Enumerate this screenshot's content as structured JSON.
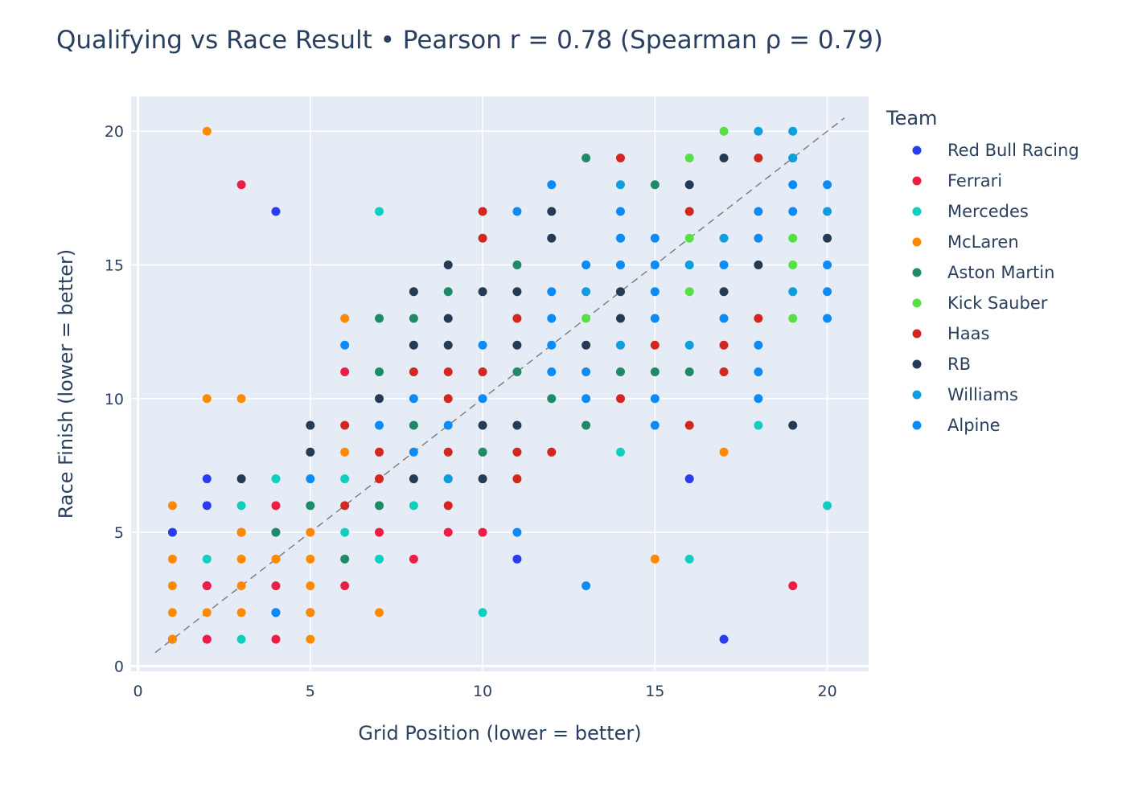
{
  "chart_data": {
    "type": "scatter",
    "title": "Qualifying vs Race Result • Pearson r = 0.78 (Spearman ρ = 0.79)",
    "xlabel": "Grid Position (lower = better)",
    "ylabel": "Race Finish (lower = better)",
    "xlim": [
      -0.2,
      21.2
    ],
    "ylim": [
      -0.2,
      21.3
    ],
    "x_ticks": [
      0,
      5,
      10,
      15,
      20
    ],
    "y_ticks": [
      0,
      5,
      10,
      15,
      20
    ],
    "grid": true,
    "legend_title": "Team",
    "legend_position": "right",
    "reference_line": {
      "style": "dashed",
      "color": "#7f7f7f",
      "from": [
        0.5,
        0.5
      ],
      "to": [
        20.5,
        20.5
      ]
    },
    "series": [
      {
        "name": "Red Bull Racing",
        "color": "#2a3cf0",
        "points": [
          [
            1,
            1
          ],
          [
            1,
            5
          ],
          [
            2,
            1
          ],
          [
            2,
            3
          ],
          [
            2,
            6
          ],
          [
            2,
            7
          ],
          [
            3,
            5
          ],
          [
            4,
            2
          ],
          [
            4,
            17
          ],
          [
            5,
            2
          ],
          [
            11,
            4
          ],
          [
            16,
            7
          ],
          [
            17,
            1
          ]
        ]
      },
      {
        "name": "Ferrari",
        "color": "#ee1d45",
        "points": [
          [
            2,
            1
          ],
          [
            2,
            3
          ],
          [
            3,
            18
          ],
          [
            4,
            1
          ],
          [
            4,
            3
          ],
          [
            4,
            6
          ],
          [
            6,
            3
          ],
          [
            6,
            11
          ],
          [
            7,
            5
          ],
          [
            8,
            4
          ],
          [
            9,
            5
          ],
          [
            10,
            5
          ],
          [
            19,
            3
          ]
        ]
      },
      {
        "name": "Mercedes",
        "color": "#10cfc0",
        "points": [
          [
            2,
            4
          ],
          [
            3,
            1
          ],
          [
            3,
            6
          ],
          [
            4,
            7
          ],
          [
            6,
            5
          ],
          [
            6,
            7
          ],
          [
            7,
            4
          ],
          [
            7,
            17
          ],
          [
            8,
            6
          ],
          [
            10,
            2
          ],
          [
            14,
            8
          ],
          [
            16,
            4
          ],
          [
            18,
            9
          ],
          [
            20,
            6
          ]
        ]
      },
      {
        "name": "McLaren",
        "color": "#ff8a00",
        "points": [
          [
            1,
            1
          ],
          [
            1,
            2
          ],
          [
            1,
            3
          ],
          [
            1,
            4
          ],
          [
            1,
            6
          ],
          [
            2,
            2
          ],
          [
            2,
            10
          ],
          [
            2,
            20
          ],
          [
            3,
            2
          ],
          [
            3,
            3
          ],
          [
            3,
            4
          ],
          [
            3,
            5
          ],
          [
            3,
            10
          ],
          [
            4,
            4
          ],
          [
            5,
            1
          ],
          [
            5,
            2
          ],
          [
            5,
            3
          ],
          [
            5,
            4
          ],
          [
            5,
            5
          ],
          [
            6,
            8
          ],
          [
            6,
            13
          ],
          [
            7,
            2
          ],
          [
            15,
            4
          ],
          [
            17,
            8
          ]
        ]
      },
      {
        "name": "Aston Martin",
        "color": "#1e8a66",
        "points": [
          [
            4,
            5
          ],
          [
            5,
            6
          ],
          [
            6,
            4
          ],
          [
            7,
            6
          ],
          [
            7,
            11
          ],
          [
            7,
            13
          ],
          [
            8,
            9
          ],
          [
            8,
            13
          ],
          [
            9,
            7
          ],
          [
            9,
            14
          ],
          [
            10,
            8
          ],
          [
            11,
            11
          ],
          [
            11,
            15
          ],
          [
            12,
            10
          ],
          [
            13,
            9
          ],
          [
            13,
            19
          ],
          [
            14,
            11
          ],
          [
            15,
            11
          ],
          [
            15,
            18
          ],
          [
            16,
            11
          ],
          [
            19,
            19
          ]
        ]
      },
      {
        "name": "Kick Sauber",
        "color": "#56e043",
        "points": [
          [
            13,
            13
          ],
          [
            16,
            14
          ],
          [
            16,
            16
          ],
          [
            16,
            19
          ],
          [
            17,
            20
          ],
          [
            19,
            13
          ],
          [
            19,
            15
          ],
          [
            19,
            16
          ]
        ]
      },
      {
        "name": "Haas",
        "color": "#d3261e",
        "points": [
          [
            6,
            6
          ],
          [
            6,
            9
          ],
          [
            7,
            7
          ],
          [
            7,
            8
          ],
          [
            8,
            11
          ],
          [
            9,
            6
          ],
          [
            9,
            8
          ],
          [
            9,
            10
          ],
          [
            9,
            11
          ],
          [
            10,
            11
          ],
          [
            10,
            16
          ],
          [
            10,
            17
          ],
          [
            11,
            7
          ],
          [
            11,
            8
          ],
          [
            11,
            13
          ],
          [
            12,
            8
          ],
          [
            14,
            10
          ],
          [
            14,
            19
          ],
          [
            15,
            12
          ],
          [
            16,
            9
          ],
          [
            16,
            17
          ],
          [
            17,
            11
          ],
          [
            17,
            12
          ],
          [
            18,
            13
          ],
          [
            18,
            19
          ]
        ]
      },
      {
        "name": "RB",
        "color": "#253a55",
        "points": [
          [
            3,
            7
          ],
          [
            5,
            8
          ],
          [
            5,
            9
          ],
          [
            7,
            10
          ],
          [
            8,
            7
          ],
          [
            8,
            12
          ],
          [
            8,
            14
          ],
          [
            9,
            12
          ],
          [
            9,
            13
          ],
          [
            9,
            15
          ],
          [
            10,
            7
          ],
          [
            10,
            9
          ],
          [
            10,
            14
          ],
          [
            11,
            9
          ],
          [
            11,
            12
          ],
          [
            11,
            14
          ],
          [
            12,
            16
          ],
          [
            12,
            17
          ],
          [
            13,
            12
          ],
          [
            14,
            13
          ],
          [
            14,
            14
          ],
          [
            16,
            18
          ],
          [
            17,
            14
          ],
          [
            17,
            19
          ],
          [
            18,
            15
          ],
          [
            19,
            9
          ],
          [
            20,
            16
          ]
        ]
      },
      {
        "name": "Williams",
        "color": "#0e9ede",
        "points": [
          [
            9,
            7
          ],
          [
            13,
            14
          ],
          [
            14,
            12
          ],
          [
            14,
            16
          ],
          [
            14,
            18
          ],
          [
            16,
            12
          ],
          [
            16,
            15
          ],
          [
            17,
            16
          ],
          [
            18,
            20
          ],
          [
            19,
            14
          ],
          [
            19,
            19
          ],
          [
            19,
            20
          ],
          [
            20,
            17
          ]
        ]
      },
      {
        "name": "Alpine",
        "color": "#0b8bf8",
        "points": [
          [
            4,
            2
          ],
          [
            5,
            7
          ],
          [
            6,
            12
          ],
          [
            7,
            9
          ],
          [
            8,
            8
          ],
          [
            8,
            10
          ],
          [
            9,
            9
          ],
          [
            10,
            10
          ],
          [
            10,
            12
          ],
          [
            11,
            5
          ],
          [
            11,
            17
          ],
          [
            12,
            11
          ],
          [
            12,
            12
          ],
          [
            12,
            13
          ],
          [
            12,
            14
          ],
          [
            12,
            18
          ],
          [
            13,
            3
          ],
          [
            13,
            10
          ],
          [
            13,
            11
          ],
          [
            13,
            15
          ],
          [
            14,
            15
          ],
          [
            14,
            16
          ],
          [
            14,
            17
          ],
          [
            15,
            9
          ],
          [
            15,
            10
          ],
          [
            15,
            13
          ],
          [
            15,
            14
          ],
          [
            15,
            15
          ],
          [
            15,
            16
          ],
          [
            17,
            13
          ],
          [
            17,
            15
          ],
          [
            18,
            10
          ],
          [
            18,
            11
          ],
          [
            18,
            12
          ],
          [
            18,
            16
          ],
          [
            18,
            17
          ],
          [
            19,
            17
          ],
          [
            19,
            18
          ],
          [
            20,
            13
          ],
          [
            20,
            14
          ],
          [
            20,
            15
          ],
          [
            20,
            18
          ]
        ]
      }
    ]
  }
}
